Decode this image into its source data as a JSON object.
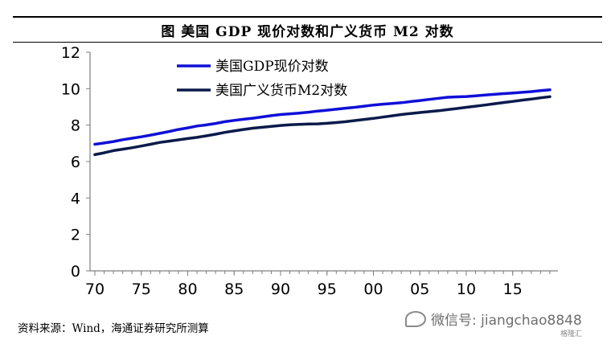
{
  "header": {
    "title": "图 美国 GDP 现价对数和广义货币 M2 对数"
  },
  "footer": {
    "source": "资料来源：Wind，海通证券研究所测算"
  },
  "watermark": {
    "text": "微信号: jiangchao8848",
    "badge": "格隆汇"
  },
  "colors": {
    "gdp": "#1010d8",
    "m2": "#0b1a4a",
    "axis": "#7f7f7f"
  },
  "chart_data": {
    "type": "line",
    "title": "图 美国 GDP 现价对数和广义货币 M2 对数",
    "xlabel": "",
    "ylabel": "",
    "xlim": [
      1970,
      2019
    ],
    "ylim": [
      0,
      12
    ],
    "yticks": [
      0,
      2,
      4,
      6,
      8,
      10,
      12
    ],
    "xticks": [
      {
        "year": 1970,
        "label": "70"
      },
      {
        "year": 1975,
        "label": "75"
      },
      {
        "year": 1980,
        "label": "80"
      },
      {
        "year": 1985,
        "label": "85"
      },
      {
        "year": 1990,
        "label": "90"
      },
      {
        "year": 1995,
        "label": "95"
      },
      {
        "year": 2000,
        "label": "00"
      },
      {
        "year": 2005,
        "label": "05"
      },
      {
        "year": 2010,
        "label": "10"
      },
      {
        "year": 2015,
        "label": "15"
      }
    ],
    "grid": false,
    "legend": "top-left",
    "x": [
      1970,
      1971,
      1972,
      1973,
      1974,
      1975,
      1976,
      1977,
      1978,
      1979,
      1980,
      1981,
      1982,
      1983,
      1984,
      1985,
      1986,
      1987,
      1988,
      1989,
      1990,
      1991,
      1992,
      1993,
      1994,
      1995,
      1996,
      1997,
      1998,
      1999,
      2000,
      2001,
      2002,
      2003,
      2004,
      2005,
      2006,
      2007,
      2008,
      2009,
      2010,
      2011,
      2012,
      2013,
      2014,
      2015,
      2016,
      2017,
      2018,
      2019
    ],
    "series": [
      {
        "name": "美国GDP现价对数",
        "color": "#1010d8",
        "values": [
          6.95,
          7.02,
          7.1,
          7.2,
          7.28,
          7.36,
          7.45,
          7.55,
          7.65,
          7.76,
          7.85,
          7.95,
          8.01,
          8.09,
          8.19,
          8.26,
          8.32,
          8.38,
          8.45,
          8.52,
          8.58,
          8.62,
          8.66,
          8.71,
          8.77,
          8.82,
          8.87,
          8.93,
          8.98,
          9.04,
          9.1,
          9.15,
          9.19,
          9.23,
          9.29,
          9.35,
          9.41,
          9.47,
          9.53,
          9.55,
          9.57,
          9.61,
          9.65,
          9.69,
          9.73,
          9.76,
          9.8,
          9.84,
          9.89,
          9.94
        ]
      },
      {
        "name": "美国广义货币M2对数",
        "color": "#0b1a4a",
        "values": [
          6.38,
          6.48,
          6.6,
          6.68,
          6.76,
          6.85,
          6.95,
          7.05,
          7.12,
          7.19,
          7.26,
          7.33,
          7.41,
          7.5,
          7.6,
          7.68,
          7.76,
          7.83,
          7.88,
          7.93,
          7.98,
          8.02,
          8.04,
          8.06,
          8.07,
          8.1,
          8.14,
          8.19,
          8.25,
          8.31,
          8.37,
          8.44,
          8.51,
          8.58,
          8.64,
          8.69,
          8.74,
          8.79,
          8.85,
          8.91,
          8.98,
          9.04,
          9.1,
          9.17,
          9.24,
          9.3,
          9.37,
          9.43,
          9.5,
          9.56
        ]
      }
    ]
  }
}
